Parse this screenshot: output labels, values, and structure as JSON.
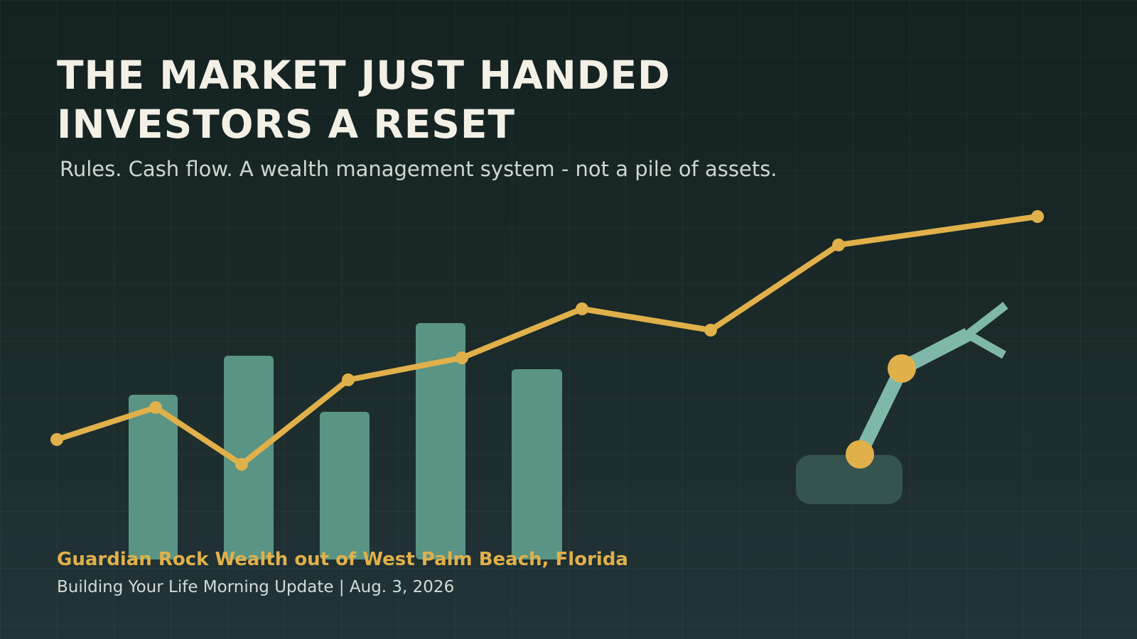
{
  "header": {
    "title_lines": [
      "THE MARKET JUST HANDED",
      "INVESTORS A RESET"
    ],
    "subtitle": "Rules. Cash flow. A wealth management system - not a pile of assets."
  },
  "footer": {
    "brand": "Guardian Rock Wealth out of West Palm Beach, Florida",
    "byline": "Building Your Life Morning Update | Aug. 3, 2026"
  }
}
